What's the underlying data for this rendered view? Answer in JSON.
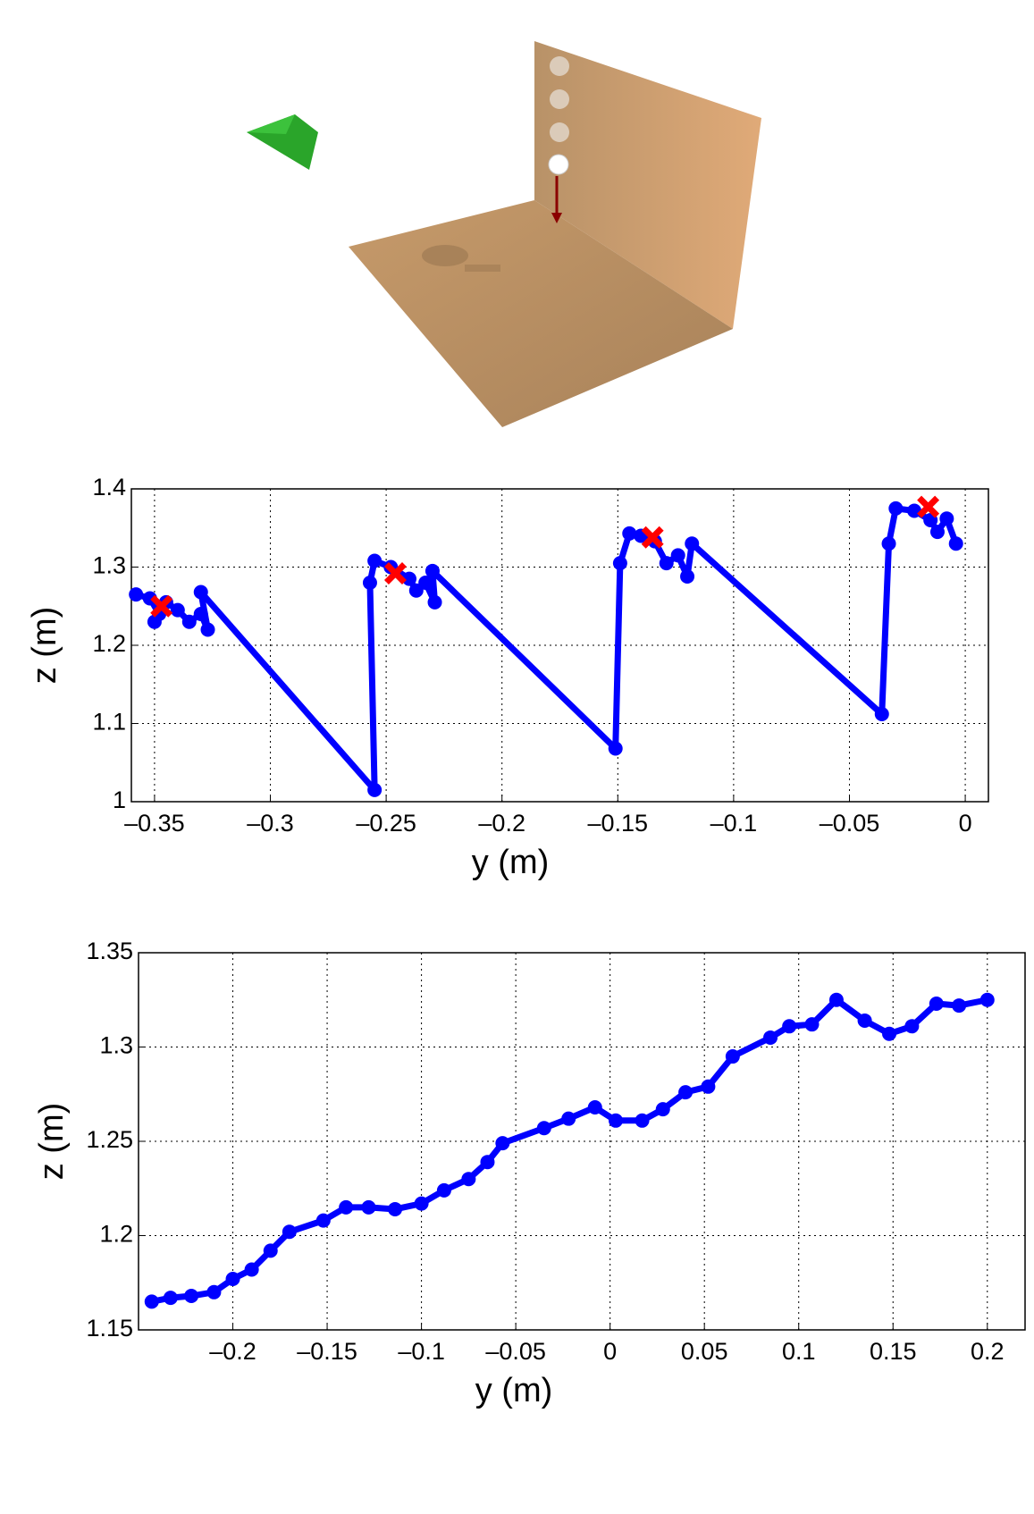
{
  "chart_data": [
    {
      "type": "line",
      "xlabel": "y (m)",
      "ylabel": "z (m)",
      "grid": true,
      "xlim": [
        -0.36,
        0.01
      ],
      "ylim": [
        1.0,
        1.4
      ],
      "xticks": [
        {
          "value": -0.35,
          "label": "–0.35"
        },
        {
          "value": -0.3,
          "label": "–0.3"
        },
        {
          "value": -0.25,
          "label": "–0.25"
        },
        {
          "value": -0.2,
          "label": "–0.2"
        },
        {
          "value": -0.15,
          "label": "–0.15"
        },
        {
          "value": -0.1,
          "label": "–0.1"
        },
        {
          "value": -0.05,
          "label": "–0.05"
        },
        0
      ],
      "yticks": [
        1,
        1.1,
        1.2,
        1.3,
        1.4
      ],
      "series": [
        {
          "color": "#0000ff",
          "marker": "circle",
          "x": [
            -0.358,
            -0.352,
            -0.348,
            -0.35,
            -0.345,
            -0.34,
            -0.335,
            -0.33,
            -0.327,
            -0.33,
            -0.255,
            -0.257,
            -0.255,
            -0.248,
            -0.24,
            -0.237,
            -0.233,
            -0.229,
            -0.23,
            -0.151,
            -0.149,
            -0.145,
            -0.14,
            -0.134,
            -0.129,
            -0.124,
            -0.12,
            -0.118,
            -0.036,
            -0.033,
            -0.03,
            -0.022,
            -0.015,
            -0.012,
            -0.008,
            -0.004
          ],
          "values": [
            1.265,
            1.26,
            1.24,
            1.23,
            1.255,
            1.245,
            1.23,
            1.24,
            1.22,
            1.268,
            1.015,
            1.28,
            1.308,
            1.3,
            1.285,
            1.27,
            1.28,
            1.255,
            1.295,
            1.068,
            1.305,
            1.343,
            1.34,
            1.333,
            1.305,
            1.315,
            1.288,
            1.33,
            1.112,
            1.33,
            1.375,
            1.372,
            1.36,
            1.345,
            1.362,
            1.33
          ]
        },
        {
          "color": "#ff0000",
          "marker": "x",
          "x": [
            -0.347,
            -0.246,
            -0.135,
            -0.016
          ],
          "values": [
            1.25,
            1.292,
            1.338,
            1.377
          ]
        }
      ]
    },
    {
      "type": "line",
      "xlabel": "y (m)",
      "ylabel": "z (m)",
      "grid": true,
      "xlim": [
        -0.25,
        0.22
      ],
      "ylim": [
        1.15,
        1.35
      ],
      "xticks": [
        {
          "value": -0.2,
          "label": "–0.2"
        },
        {
          "value": -0.15,
          "label": "–0.15"
        },
        {
          "value": -0.1,
          "label": "–0.1"
        },
        {
          "value": -0.05,
          "label": "–0.05"
        },
        0,
        0.05,
        0.1,
        0.15,
        0.2
      ],
      "yticks": [
        1.15,
        1.2,
        1.25,
        1.3,
        1.35
      ],
      "series": [
        {
          "color": "#0000ff",
          "marker": "circle",
          "x": [
            -0.243,
            -0.233,
            -0.222,
            -0.21,
            -0.2,
            -0.19,
            -0.18,
            -0.17,
            -0.152,
            -0.14,
            -0.128,
            -0.114,
            -0.1,
            -0.088,
            -0.075,
            -0.065,
            -0.057,
            -0.035,
            -0.022,
            -0.008,
            0.003,
            0.017,
            0.028,
            0.04,
            0.052,
            0.065,
            0.085,
            0.095,
            0.107,
            0.12,
            0.135,
            0.148,
            0.16,
            0.173,
            0.185,
            0.2
          ],
          "values": [
            1.165,
            1.167,
            1.168,
            1.17,
            1.177,
            1.182,
            1.192,
            1.202,
            1.208,
            1.215,
            1.215,
            1.214,
            1.217,
            1.224,
            1.23,
            1.239,
            1.249,
            1.257,
            1.262,
            1.268,
            1.261,
            1.261,
            1.267,
            1.276,
            1.279,
            1.295,
            1.305,
            1.311,
            1.312,
            1.325,
            1.314,
            1.307,
            1.311,
            1.323,
            1.322,
            1.325
          ]
        }
      ]
    }
  ]
}
